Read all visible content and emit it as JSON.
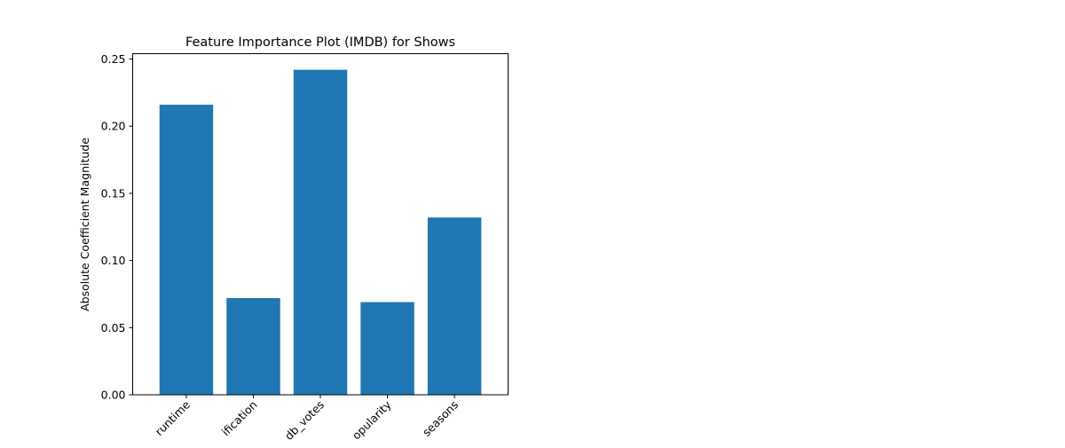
{
  "chart_data": {
    "type": "bar",
    "title": "Feature Importance Plot (IMDB) for Shows",
    "xlabel": "",
    "ylabel": "Absolute Coefficient Magnitude",
    "categories": [
      "runtime",
      "age_certification",
      "imdb_votes",
      "tmdb_popularity",
      "seasons"
    ],
    "visible_tick_labels": [
      "runtime",
      "ification",
      "db_votes",
      "opularity",
      "seasons"
    ],
    "values": [
      0.216,
      0.072,
      0.242,
      0.069,
      0.132
    ],
    "ylim": [
      0,
      0.254
    ],
    "yticks": [
      0.0,
      0.05,
      0.1,
      0.15,
      0.2,
      0.25
    ],
    "ytick_labels": [
      "0.00",
      "0.05",
      "0.10",
      "0.15",
      "0.20",
      "0.25"
    ],
    "bar_color": "#1f77b4",
    "grid": false,
    "legend": "none"
  }
}
